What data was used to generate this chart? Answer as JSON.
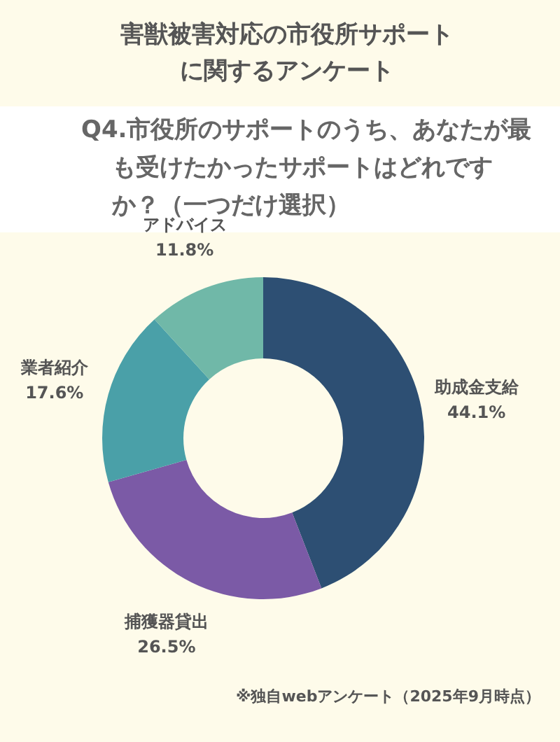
{
  "chart_data": {
    "type": "donut",
    "title": "害獣被害対応の市役所サポートに関するアンケート",
    "subtitle": "Q4.市役所のサポートのうち、あなたが最も受けたかったサポートはどれですか？（一つだけ選択）",
    "categories": [
      "助成金支給",
      "捕獲器貸出",
      "業者紹介",
      "アドバイス"
    ],
    "values": [
      44.1,
      26.5,
      17.6,
      11.8
    ],
    "colors": [
      "#2d4f73",
      "#7b5aa6",
      "#4aa0a8",
      "#70b8a8"
    ],
    "value_labels": [
      "44.1%",
      "26.5%",
      "17.6%",
      "11.8%"
    ],
    "annotations": [
      "※独自webアンケート（2025年9月時点）"
    ]
  }
}
